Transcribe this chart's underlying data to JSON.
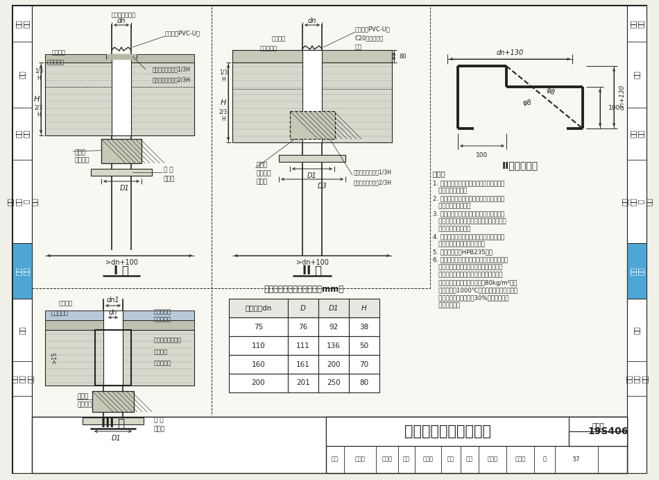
{
  "title": "管道穿楼面阻火圈安装",
  "drawing_number": "19S406",
  "page": "57",
  "table_title": "可开式阻火圈规格尺寸表（mm）",
  "table_headers": [
    "公称外径dn",
    "D",
    "D1",
    "H"
  ],
  "table_data": [
    [
      "75",
      "76",
      "92",
      "38"
    ],
    [
      "110",
      "111",
      "136",
      "50"
    ],
    [
      "160",
      "161",
      "200",
      "70"
    ],
    [
      "200",
      "201",
      "250",
      "80"
    ]
  ],
  "type1_label": "I 型",
  "type2_label": "II 型",
  "type3_label": "III 型",
  "type2_steel_label": "II型加强钢筋",
  "notes_title": "说明：",
  "notes": [
    "1. 阻火圈的耐火极限不应小于安装部位建筑",
    "   构件的耐火极限。",
    "2. 钢制套管的耐火极限应不小于安装部位建",
    "   筑构件的耐火极限。",
    "3. 当发生火灾时，排水管局部发生破坏，阻",
    "   火圈膨胀材料受热急剧发生膨胀封闭管口，",
    "   阻止火灾向上蔓延。",
    "4. 图中阻火圈的安装尺寸仅供参考，实际安",
    "   装尺寸应以采购的产品为准。",
    "5. 加强钢筋采用HPB235钢。",
    "6. 建筑防火封堵的骨衬材料应为不燃材料，并",
    "   宜结合防火封堵部位的特点，防火封堵材",
    "   料及封堵方式选用。当骨衬材料采用矿物",
    "   棉时，矿物棉的密重不应低于80kg/m²，熔",
    "   点不应小于1000℃。在填塞前将自然状态的",
    "   矿物棉预先压缩不小于30%后再掺入相应",
    "   的封堵位置。"
  ],
  "sidebar_texts": [
    "目录\n说明",
    "管材",
    "管道\n连接",
    "管道\n安装\n示\n意图",
    "节点\n大样",
    "管件",
    "相关\n技术\n资料"
  ],
  "sy_boundaries": [
    8,
    60,
    155,
    230,
    350,
    430,
    520,
    570,
    681
  ],
  "bg_color": "#f0f0e8",
  "sidebar_highlight": "节点\n大样",
  "sidebar_color": "#4da6d4",
  "line_color": "#222222",
  "white": "#ffffff",
  "gray_slab": "#d8d8cc",
  "gray_hatch": "#aaaaaa",
  "gray_fill": "#c8c8b8"
}
